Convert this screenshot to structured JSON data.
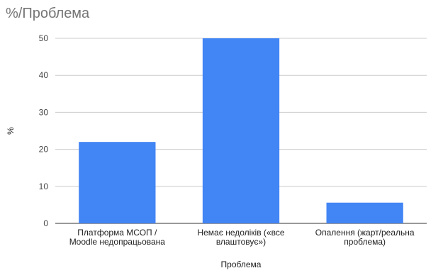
{
  "chart_data": {
    "type": "bar",
    "title": "%/Проблема",
    "xlabel": "Проблема",
    "ylabel": "%",
    "ylim": [
      0,
      50
    ],
    "yticks": [
      0,
      10,
      20,
      30,
      40,
      50
    ],
    "grid": true,
    "legend": "none",
    "bar_color": "#4285f4",
    "categories": [
      [
        "Платформа МСОП /",
        "Moodle недопрацьована"
      ],
      [
        "Немає недоліків («все",
        "влаштовує»)"
      ],
      [
        "Опалення (жарт/реальна",
        "проблема)"
      ]
    ],
    "values": [
      22,
      50,
      5.6
    ]
  }
}
